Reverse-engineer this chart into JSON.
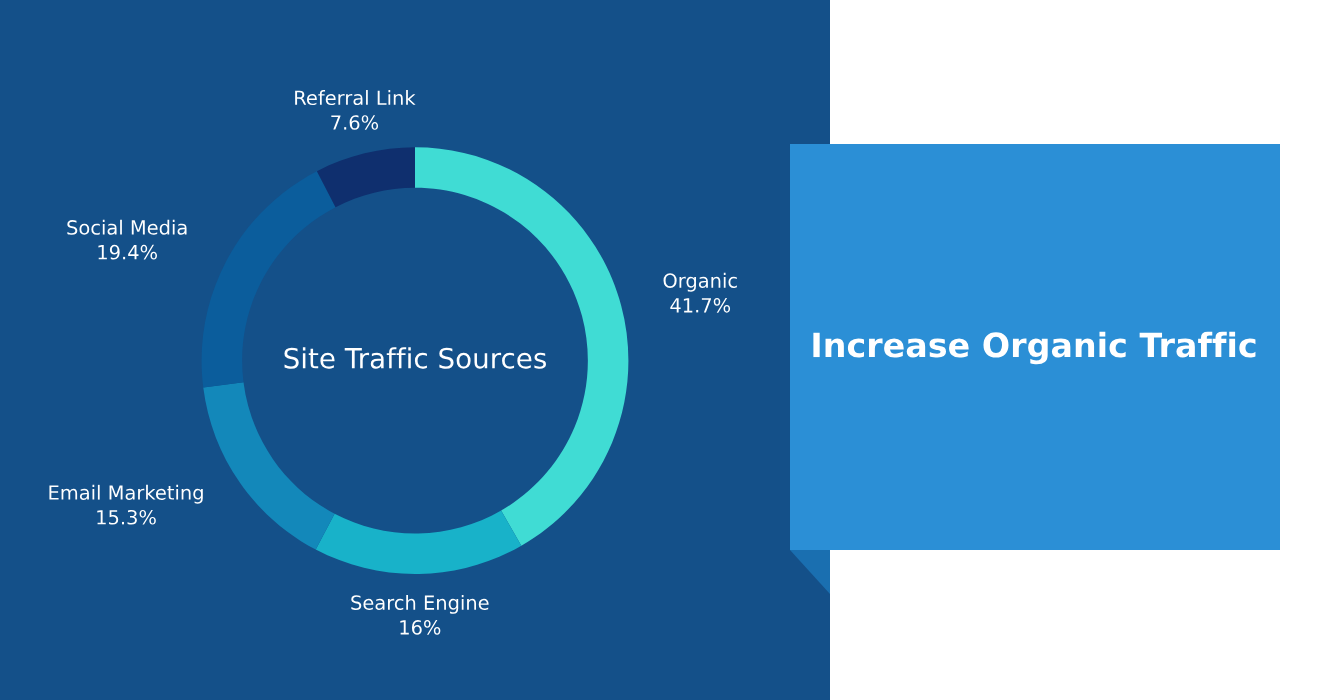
{
  "chart_data": {
    "type": "donut",
    "title": "Site Traffic Sources",
    "categories": [
      "Organic",
      "Search Engine",
      "Email Marketing",
      "Social Media",
      "Referral Link"
    ],
    "values": [
      41.7,
      16,
      15.3,
      19.4,
      7.6
    ],
    "value_labels": [
      "41.7%",
      "16%",
      "15.3%",
      "19.4%",
      "7.6%"
    ],
    "colors": [
      "#40dcd4",
      "#18b2c9",
      "#1388ba",
      "#0b5d9c",
      "#0f2f6e"
    ],
    "annotations": [
      "Increase Organic Traffic"
    ],
    "legend": false
  }
}
